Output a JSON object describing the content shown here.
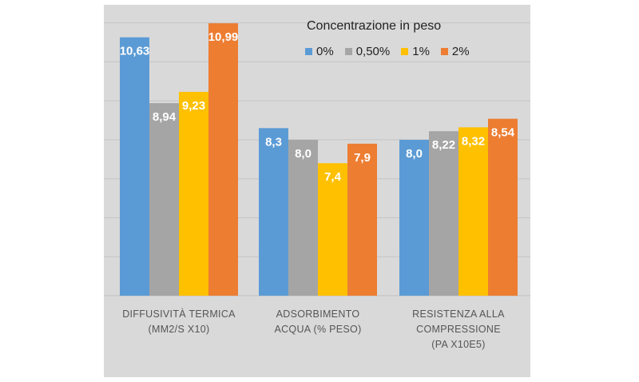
{
  "chart_data": {
    "type": "bar",
    "categories": [
      "DIFFUSIVITÀ TERMICA (MM2/S X10)",
      "ADSORBIMENTO ACQUA (% PESO)",
      "RESISTENZA ALLA COMPRESSIONE (PA X10E5)"
    ],
    "category_lines": [
      [
        "DIFFUSIVITÀ TERMICA",
        "(MM2/S X10)"
      ],
      [
        "ADSORBIMENTO",
        "ACQUA (% PESO)"
      ],
      [
        "RESISTENZA ALLA",
        "COMPRESSIONE",
        "(PA X10E5)"
      ]
    ],
    "series": [
      {
        "name": "0%",
        "color": "#5b9bd5",
        "values": [
          10.63,
          8.3,
          8.0
        ],
        "labels": [
          "10,63",
          "8,3",
          "8,0"
        ]
      },
      {
        "name": "0,50%",
        "color": "#a5a5a5",
        "values": [
          8.94,
          8.0,
          8.22
        ],
        "labels": [
          "8,94",
          "8,0",
          "8,22"
        ]
      },
      {
        "name": "1%",
        "color": "#ffc000",
        "values": [
          9.23,
          7.4,
          8.32
        ],
        "labels": [
          "9,23",
          "7,4",
          "8,32"
        ]
      },
      {
        "name": "2%",
        "color": "#ed7d31",
        "values": [
          10.99,
          7.9,
          8.54
        ],
        "labels": [
          "10,99",
          "7,9",
          "8,54"
        ]
      }
    ],
    "legend_title": "Concentrazione in peso",
    "legend_position": "top-right",
    "ylim": [
      4,
      11.3
    ],
    "grid": true,
    "gridlines": [
      5,
      6,
      7,
      8,
      9,
      10,
      11
    ],
    "title": "",
    "xlabel": "",
    "ylabel": ""
  }
}
